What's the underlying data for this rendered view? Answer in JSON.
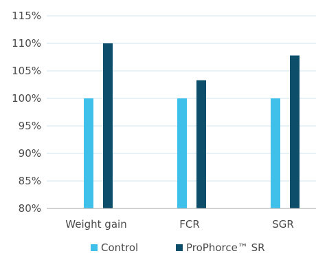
{
  "chart_data": {
    "type": "bar",
    "title": "",
    "xlabel": "",
    "ylabel": "",
    "categories": [
      "Weight gain",
      "FCR",
      "SGR"
    ],
    "series": [
      {
        "name": "Control",
        "values": [
          100,
          100,
          100
        ],
        "color": "#3fc0ea"
      },
      {
        "name": "ProPhorce™ SR",
        "values": [
          110,
          103.3,
          107.8
        ],
        "color": "#0d4e6b"
      }
    ],
    "ylim": [
      80,
      115
    ],
    "yticks": [
      80,
      85,
      90,
      95,
      100,
      105,
      110,
      115
    ],
    "ytick_labels": [
      "80%",
      "85%",
      "90%",
      "95%",
      "100%",
      "105%",
      "110%",
      "115%"
    ],
    "grid": "horizontal",
    "grid_color": "#cfe3ee",
    "axis_color": "#b8b8b8",
    "legend_position": "bottom-center"
  }
}
